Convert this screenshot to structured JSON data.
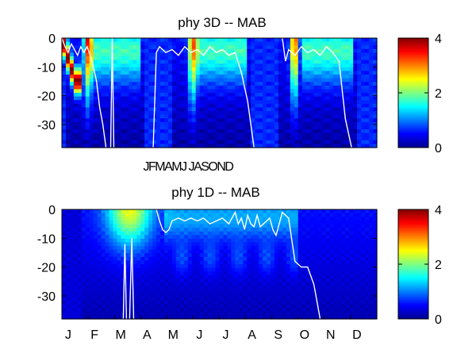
{
  "colors": {
    "background": "#ffffff",
    "contour": "#ffffff",
    "axis": "#000000"
  },
  "colormap": "jet",
  "chart_data": [
    {
      "type": "heatmap",
      "title": "phy 3D   -- MAB",
      "xlabel": "",
      "ylabel": "",
      "x_tick_labels": [
        "J",
        "F",
        "M",
        "A",
        "M",
        "J",
        "J",
        "A",
        "S",
        "O",
        "N",
        "D"
      ],
      "x_tick_label_text": "JFMAMJ JASOND",
      "y_ticks": [
        0,
        -10,
        -20,
        -30
      ],
      "ylim": [
        -38,
        0
      ],
      "xlim": [
        0,
        12
      ],
      "x_extent_years": 3,
      "clim": [
        0,
        4
      ],
      "colorbar_ticks": [
        0,
        2,
        4
      ],
      "grid": false
    },
    {
      "type": "heatmap",
      "title": "phy 1D   -- MAB",
      "xlabel": "",
      "ylabel": "",
      "x_tick_labels": [
        "J",
        "F",
        "M",
        "A",
        "M",
        "J",
        "J",
        "A",
        "S",
        "O",
        "N",
        "D"
      ],
      "y_ticks": [
        0,
        -10,
        -20,
        -30
      ],
      "ylim": [
        -38,
        0
      ],
      "xlim": [
        0,
        12
      ],
      "clim": [
        0,
        4
      ],
      "colorbar_ticks": [
        0,
        2,
        4
      ],
      "grid": false
    }
  ]
}
